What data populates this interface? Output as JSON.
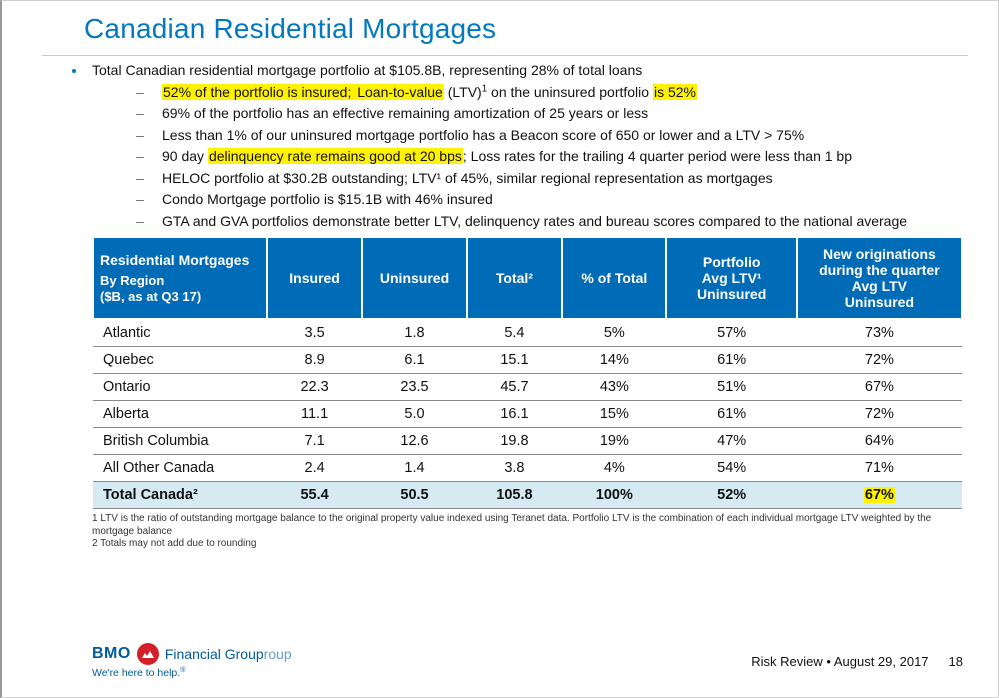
{
  "title": "Canadian Residential Mortgages",
  "bullets": {
    "top": "Total Canadian residential mortgage portfolio at $105.8B, representing 28% of total loans",
    "subs": {
      "s1a": "52% of the portfolio is insured;",
      "s1b": " Loan-to-value",
      "s1c": " (LTV)",
      "s1d": " on the uninsured portfolio ",
      "s1e": "is 52%",
      "s2": "69% of the portfolio has an effective remaining amortization of 25 years or less",
      "s3": "Less than 1% of our uninsured mortgage portfolio has a Beacon score of 650 or lower and a LTV > 75%",
      "s4a": "90 day ",
      "s4b": "delinquency rate remains good at 20 bps",
      "s4c": "; Loss rates for the trailing 4 quarter period were less than 1 bp",
      "s5": "HELOC portfolio at $30.2B outstanding; LTV¹ of 45%, similar regional representation as mortgages",
      "s6": "Condo Mortgage portfolio is $15.1B with 46% insured",
      "s7": "GTA and GVA portfolios demonstrate better LTV, delinquency rates and bureau scores compared to the national average"
    }
  },
  "table": {
    "headers": {
      "h1a": "Residential Mortgages",
      "h1b": "By Region",
      "h1c": "($B, as at Q3 17)",
      "h2": "Insured",
      "h3": "Uninsured",
      "h4": "Total²",
      "h5": "% of Total",
      "h6a": "Portfolio",
      "h6b": "Avg LTV¹",
      "h6c": "Uninsured",
      "h7a": "New originations during the quarter",
      "h7b": "Avg LTV",
      "h7c": "Uninsured"
    },
    "rows": [
      {
        "region": "Atlantic",
        "insured": "3.5",
        "uninsured": "1.8",
        "total": "5.4",
        "pct": "5%",
        "ltv": "57%",
        "newltv": "73%"
      },
      {
        "region": "Quebec",
        "insured": "8.9",
        "uninsured": "6.1",
        "total": "15.1",
        "pct": "14%",
        "ltv": "61%",
        "newltv": "72%"
      },
      {
        "region": "Ontario",
        "insured": "22.3",
        "uninsured": "23.5",
        "total": "45.7",
        "pct": "43%",
        "ltv": "51%",
        "newltv": "67%"
      },
      {
        "region": "Alberta",
        "insured": "11.1",
        "uninsured": "5.0",
        "total": "16.1",
        "pct": "15%",
        "ltv": "61%",
        "newltv": "72%"
      },
      {
        "region": "British Columbia",
        "insured": "7.1",
        "uninsured": "12.6",
        "total": "19.8",
        "pct": "19%",
        "ltv": "47%",
        "newltv": "64%"
      },
      {
        "region": "All Other Canada",
        "insured": "2.4",
        "uninsured": "1.4",
        "total": "3.8",
        "pct": "4%",
        "ltv": "54%",
        "newltv": "71%"
      }
    ],
    "totalRow": {
      "region": "Total Canada²",
      "insured": "55.4",
      "uninsured": "50.5",
      "total": "105.8",
      "pct": "100%",
      "ltv": "52%",
      "newltv": "67%"
    }
  },
  "footnotes": {
    "f1": "1 LTV is the ratio of outstanding mortgage balance to the original property value indexed using Teranet data.  Portfolio LTV is the combination of each individual mortgage LTV weighted by the mortgage balance",
    "f2": "2 Totals may not add due to rounding"
  },
  "footer": {
    "bmo": "BMO",
    "fg": "Financial Group",
    "roup": "roup",
    "tagline": "We're here to help.",
    "taglineSuffix": "®",
    "right": "Risk Review • August 29, 2017",
    "pageNum": "18"
  },
  "colors": {
    "brand_blue": "#0079c1",
    "header_blue": "#006bb6",
    "total_row_bg": "#d5eaf3",
    "highlight": "#fff200",
    "bmo_red": "#d31f2a"
  },
  "col_widths_pct": [
    20,
    11,
    12,
    11,
    12,
    15,
    19
  ]
}
